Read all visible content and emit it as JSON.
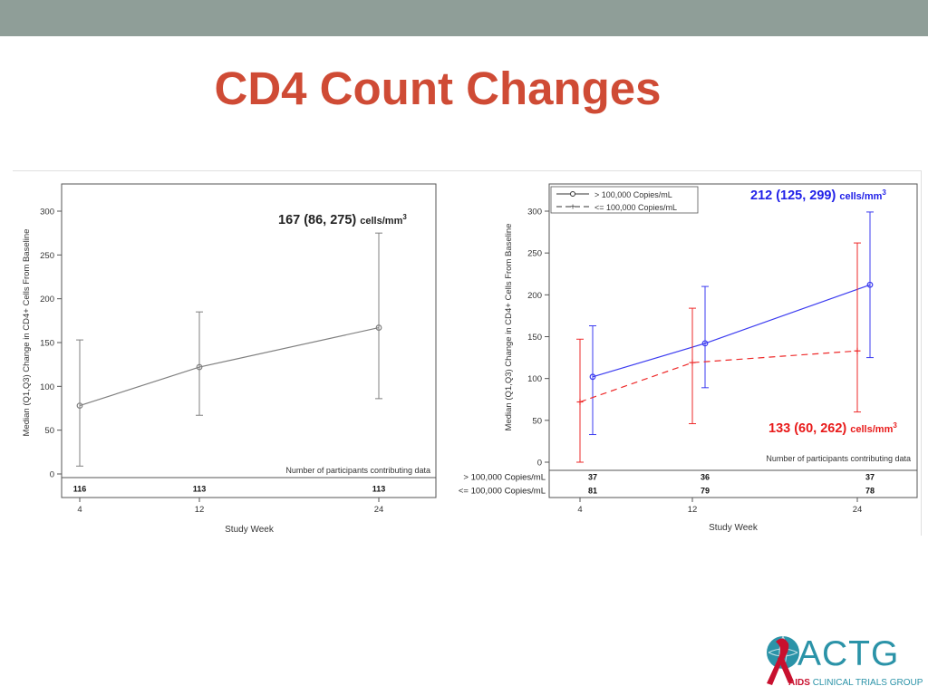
{
  "slide": {
    "title": "CD4 Count Changes"
  },
  "logo": {
    "name": "ACTG",
    "sub_red": "AIDS",
    "sub_rest": "CLINICAL TRIALS GROUP",
    "colors": {
      "teal": "#2b93a8",
      "red": "#c8102e"
    }
  },
  "colors": {
    "title": "#cf4b35",
    "topbar": "#8f9e98",
    "gray_line": "#808080",
    "blue": "#3b3bf0",
    "red": "#ee2a2a"
  },
  "chart_data": [
    {
      "type": "line",
      "ylabel": "Median (Q1,Q3) Change in CD4+ Cells From Baseline",
      "xlabel": "Study Week",
      "x": [
        4,
        12,
        24
      ],
      "xticks": [
        "4",
        "12",
        "24"
      ],
      "yticks": [
        "0",
        "50",
        "100",
        "150",
        "200",
        "250",
        "300"
      ],
      "ylim": [
        0,
        300
      ],
      "error_bars": true,
      "series": [
        {
          "median": [
            78,
            122,
            167
          ],
          "q1": [
            9,
            67,
            86
          ],
          "q3": [
            153,
            185,
            275
          ],
          "color": "#808080",
          "dash": "solid",
          "marker": "circle"
        }
      ],
      "annotation": {
        "value": "167 (86, 275)",
        "unit": "cells/mm",
        "sup": "3",
        "color": "#222222"
      },
      "participants": {
        "label": "Number of participants contributing data",
        "rows": [
          {
            "name": "",
            "counts": [
              "116",
              "113",
              "113"
            ]
          }
        ]
      }
    },
    {
      "type": "line",
      "ylabel": "Median (Q1,Q3) Change in CD4+ Cells From Baseline",
      "xlabel": "Study Week",
      "x": [
        4,
        12,
        24
      ],
      "xticks": [
        "4",
        "12",
        "24"
      ],
      "yticks": [
        "0",
        "50",
        "100",
        "150",
        "200",
        "250",
        "300"
      ],
      "ylim": [
        0,
        300
      ],
      "error_bars": true,
      "legend": {
        "position": "top-left",
        "entries": [
          "> 100,000 Copies/mL",
          "<= 100,000 Copies/mL"
        ]
      },
      "series": [
        {
          "name": "> 100,000 Copies/mL",
          "median": [
            102,
            142,
            212
          ],
          "q1": [
            33,
            89,
            125
          ],
          "q3": [
            163,
            210,
            299
          ],
          "color": "#3b3bf0",
          "dash": "solid",
          "marker": "circle"
        },
        {
          "name": "<= 100,000 Copies/mL",
          "median": [
            72,
            119,
            133
          ],
          "q1": [
            0,
            46,
            60
          ],
          "q3": [
            147,
            184,
            262
          ],
          "color": "#ee2a2a",
          "dash": "dashed",
          "marker": "plus"
        }
      ],
      "annotations": [
        {
          "value": "212 (125, 299)",
          "unit": "cells/mm",
          "sup": "3",
          "color": "#2020e8"
        },
        {
          "value": "133 (60, 262)",
          "unit": "cells/mm",
          "sup": "3",
          "color": "#e81a1a"
        }
      ],
      "participants": {
        "label": "Number of participants contributing data",
        "rows": [
          {
            "name": "> 100,000 Copies/mL",
            "counts": [
              "37",
              "36",
              "37"
            ]
          },
          {
            "name": "<= 100,000 Copies/mL",
            "counts": [
              "81",
              "79",
              "78"
            ]
          }
        ]
      }
    }
  ]
}
